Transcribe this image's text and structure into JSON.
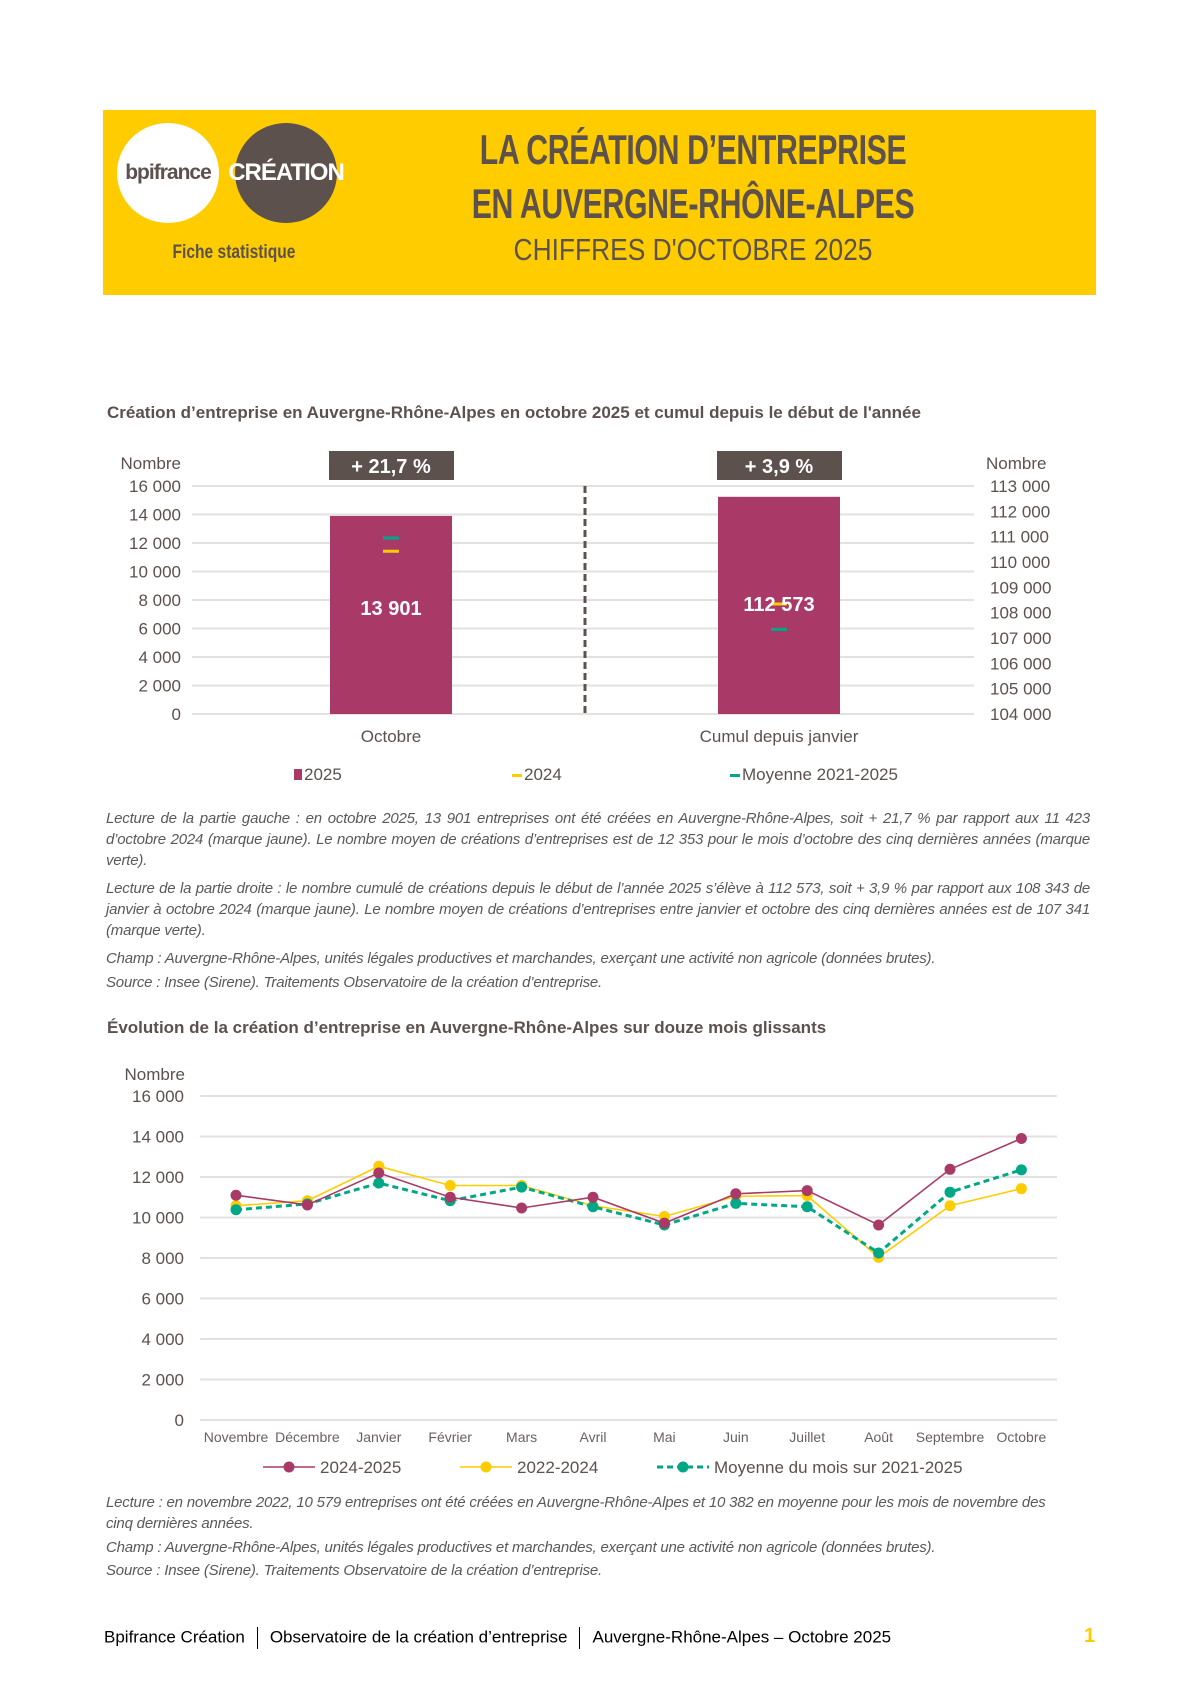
{
  "header": {
    "logo_bpifrance": "bpifrance",
    "logo_creation": "CRÉATION",
    "fiche": "Fiche statistique",
    "title_line1": "LA CRÉATION D’ENTREPRISE",
    "title_line2": "EN AUVERGNE-RHÔNE-ALPES",
    "subtitle": "CHIFFRES D'OCTOBRE 2025"
  },
  "colors": {
    "yellow": "#ffcc00",
    "dark": "#5c514d",
    "s2025": "#a93a68",
    "s2024": "#ffcc00",
    "avg": "#00a887"
  },
  "section1": {
    "title": "Création d’entreprise en Auvergne-Rhône-Alpes en octobre 2025 et cumul depuis le début de l'année",
    "notes": [
      "Lecture de la partie gauche : en octobre 2025, 13 901 entreprises ont été créées en Auvergne-Rhône-Alpes, soit + 21,7 % par rapport aux 11 423 d’octobre 2024 (marque jaune). Le nombre moyen de créations d’entreprises est de 12 353 pour le mois d’octobre des cinq dernières années (marque verte).",
      "Lecture de la partie droite : le nombre cumulé de créations depuis le début de l’année 2025 s’élève à 112 573, soit + 3,9 % par rapport aux 108 343 de janvier à octobre 2024 (marque jaune). Le nombre moyen de créations d’entreprises entre janvier et octobre des cinq dernières années est de 107 341 (marque verte).",
      "Champ : Auvergne-Rhône-Alpes, unités légales productives et marchandes, exerçant une activité non agricole (données brutes).",
      "Source : Insee (Sirene). Traitements Observatoire de la création d’entreprise."
    ]
  },
  "section2": {
    "title": "Évolution de la création d’entreprise en Auvergne-Rhône-Alpes sur douze mois glissants",
    "notes": [
      "Lecture : en novembre 2022, 10 579 entreprises ont été créées en Auvergne-Rhône-Alpes et 10 382 en moyenne pour les mois de novembre des cinq dernières années.",
      "Champ : Auvergne-Rhône-Alpes, unités légales productives et marchandes, exerçant une activité non agricole (données brutes).",
      "Source : Insee (Sirene). Traitements Observatoire de la création d’entreprise."
    ]
  },
  "chart_data": [
    {
      "type": "bar",
      "categories": [
        "Octobre",
        "Cumul depuis janvier"
      ],
      "left_axis": {
        "label": "Nombre",
        "ylim": [
          0,
          16000
        ],
        "ticks": [
          "0",
          "2 000",
          "4 000",
          "6 000",
          "8 000",
          "10 000",
          "12 000",
          "14 000",
          "16 000"
        ]
      },
      "right_axis": {
        "label": "Nombre",
        "ylim": [
          104000,
          113000
        ],
        "ticks": [
          "104 000",
          "105 000",
          "106 000",
          "107 000",
          "108 000",
          "109 000",
          "110 000",
          "111 000",
          "112 000",
          "113 000"
        ]
      },
      "series": [
        {
          "name": "2025",
          "values": [
            13901,
            112573
          ],
          "labels": [
            "13 901",
            "112 573"
          ]
        },
        {
          "name": "2024",
          "values": [
            11423,
            108343
          ]
        },
        {
          "name": "Moyenne 2021-2025",
          "values": [
            12353,
            107341
          ]
        }
      ],
      "annotations": [
        "+ 21,7 %",
        "+ 3,9 %"
      ],
      "grid": true,
      "legend": "bottom"
    },
    {
      "type": "line",
      "categories": [
        "Novembre",
        "Décembre",
        "Janvier",
        "Février",
        "Mars",
        "Avril",
        "Mai",
        "Juin",
        "Juillet",
        "Août",
        "Septembre",
        "Octobre"
      ],
      "ylabel": "Nombre",
      "ylim": [
        0,
        16000
      ],
      "ticks": [
        "0",
        "2 000",
        "4 000",
        "6 000",
        "8 000",
        "10 000",
        "12 000",
        "14 000",
        "16 000"
      ],
      "series": [
        {
          "name": "2024-2025",
          "values": [
            11100,
            10620,
            12200,
            11000,
            10470,
            11000,
            9720,
            11170,
            11330,
            9630,
            12380,
            13901
          ]
        },
        {
          "name": "2022-2024",
          "values": [
            10579,
            10830,
            12530,
            11580,
            11580,
            10580,
            10050,
            11050,
            11080,
            8030,
            10580,
            11423
          ]
        },
        {
          "name": "Moyenne du mois sur 2021-2025",
          "values": [
            10382,
            10670,
            11700,
            10830,
            11500,
            10530,
            9630,
            10700,
            10530,
            8250,
            11250,
            12353
          ],
          "dashed": true
        }
      ],
      "grid": true,
      "legend": "bottom"
    }
  ],
  "footer": {
    "part1": "Bpifrance Création",
    "part2": "Observatoire de la création d’entreprise",
    "part3": "Auvergne-Rhône-Alpes – Octobre 2025",
    "page": "1"
  }
}
